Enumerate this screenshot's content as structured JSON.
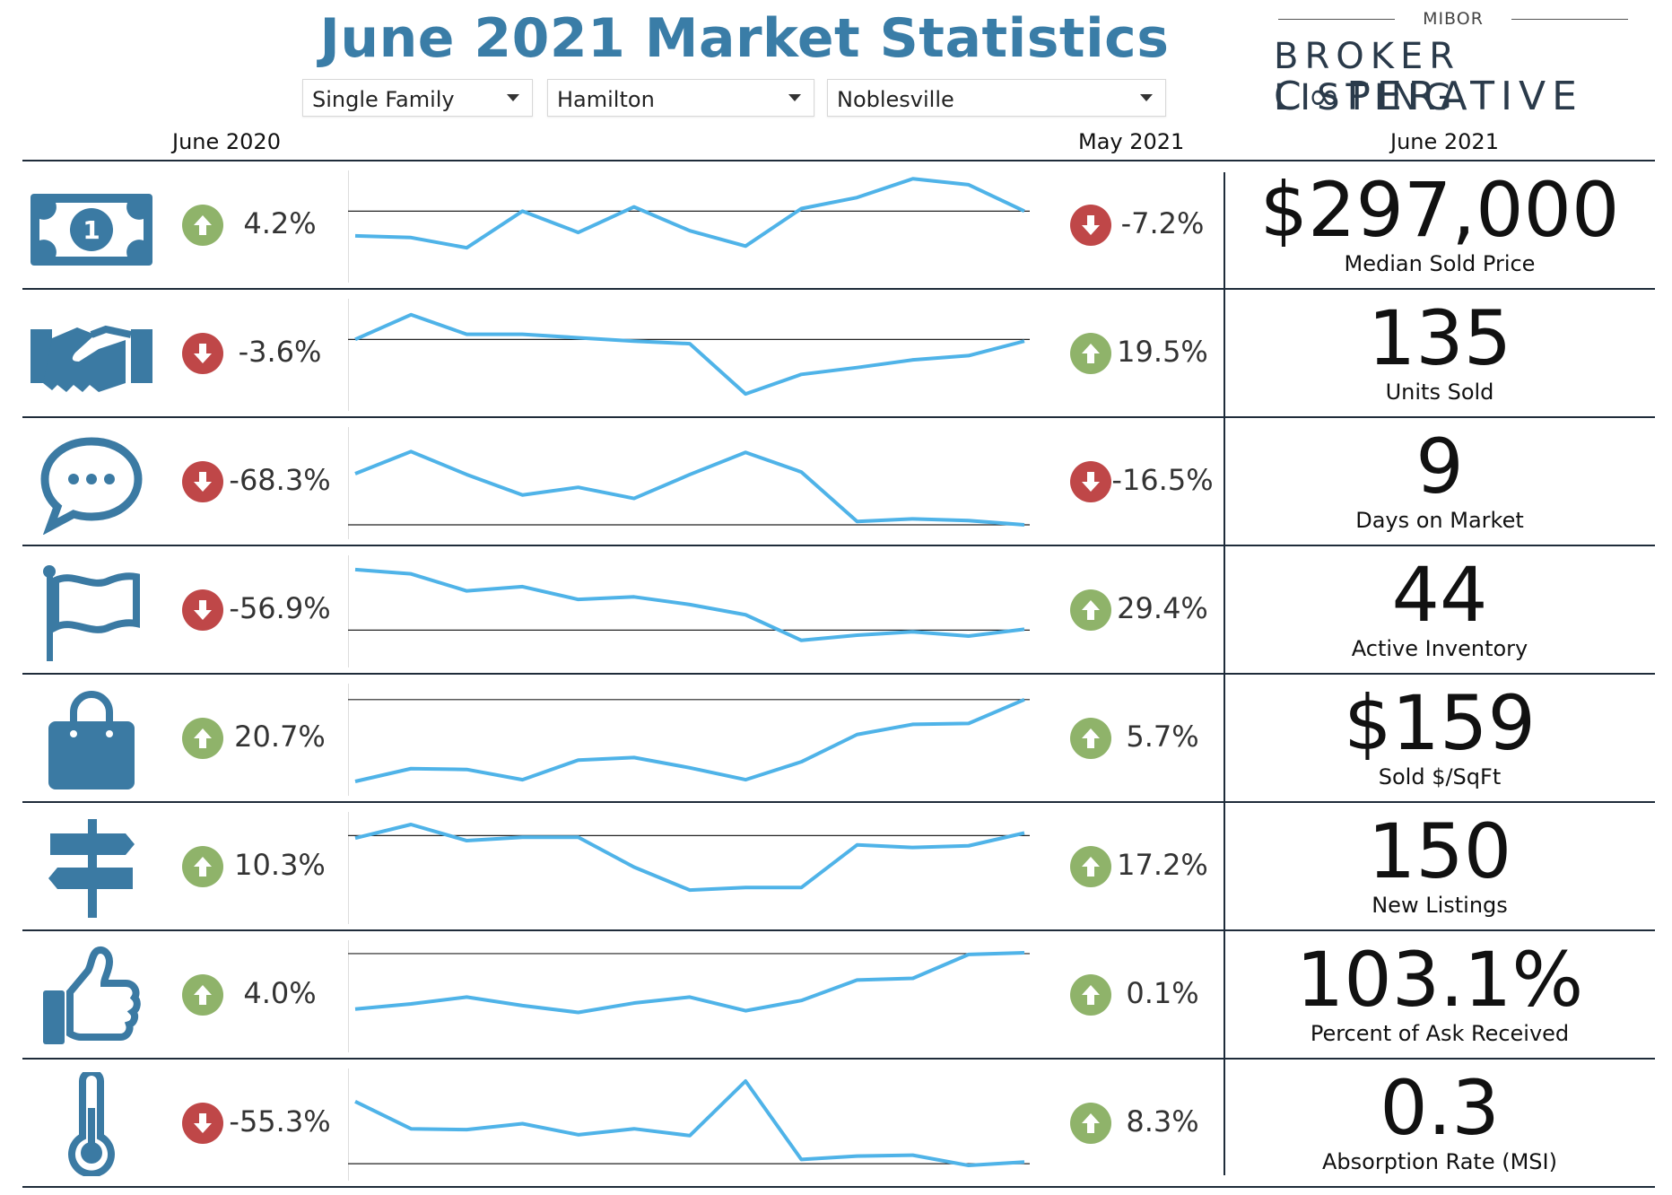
{
  "header": {
    "title": "June 2021 Market Statistics",
    "filters": [
      {
        "value": "Single Family"
      },
      {
        "value": "Hamilton"
      },
      {
        "value": "Noblesville"
      }
    ],
    "logo": {
      "top": "MIBOR",
      "line1": "BROKER LISTING",
      "line2": "C∞PERATIVE"
    }
  },
  "columns": {
    "left": "June 2020",
    "middle": "May 2021",
    "right": "June 2021"
  },
  "colors": {
    "brand_blue": "#3a7da7",
    "icon_blue": "#3b7aa3",
    "spark": "#4fb3e8",
    "up": "#8fb36a",
    "down": "#bf4748"
  },
  "chart_data": {
    "type": "line",
    "rows": [
      {
        "icon": "money-icon",
        "value": "$297,000",
        "label": "Median Sold Price",
        "yoy": {
          "dir": "up",
          "text": "4.2%"
        },
        "mom": {
          "dir": "down",
          "text": "-7.2%"
        },
        "series": [
          0.62,
          0.64,
          0.76,
          0.33,
          0.58,
          0.28,
          0.56,
          0.74,
          0.3,
          0.17,
          -0.05,
          0.02,
          0.33
        ],
        "baseline": 0.33
      },
      {
        "icon": "handshake-icon",
        "value": "135",
        "label": "Units Sold",
        "yoy": {
          "dir": "down",
          "text": "-3.6%"
        },
        "mom": {
          "dir": "up",
          "text": "19.5%"
        },
        "series": [
          0.33,
          0.04,
          0.27,
          0.27,
          0.31,
          0.35,
          0.38,
          0.97,
          0.74,
          0.66,
          0.57,
          0.52,
          0.35
        ],
        "baseline": 0.33
      },
      {
        "icon": "chat-icon",
        "value": "9",
        "label": "Days on Market",
        "yoy": {
          "dir": "down",
          "text": "-68.3%"
        },
        "mom": {
          "dir": "down",
          "text": "-16.5%"
        },
        "series": [
          0.4,
          0.14,
          0.41,
          0.65,
          0.56,
          0.69,
          0.41,
          0.15,
          0.38,
          0.96,
          0.93,
          0.95,
          1.0
        ],
        "baseline": 1.0
      },
      {
        "icon": "flag-icon",
        "value": "44",
        "label": "Active Inventory",
        "yoy": {
          "dir": "down",
          "text": "-56.9%"
        },
        "mom": {
          "dir": "up",
          "text": "29.4%"
        },
        "series": [
          0.02,
          0.07,
          0.27,
          0.22,
          0.37,
          0.34,
          0.43,
          0.55,
          0.85,
          0.79,
          0.75,
          0.8,
          0.72
        ],
        "baseline": 0.73
      },
      {
        "icon": "bag-icon",
        "value": "$159",
        "label": "Sold $/SqFt",
        "yoy": {
          "dir": "up",
          "text": "20.7%"
        },
        "mom": {
          "dir": "up",
          "text": "5.7%"
        },
        "series": [
          1.0,
          0.85,
          0.86,
          0.98,
          0.75,
          0.72,
          0.84,
          0.98,
          0.77,
          0.45,
          0.33,
          0.32,
          0.04
        ],
        "baseline": 0.04
      },
      {
        "icon": "signpost-icon",
        "value": "150",
        "label": "New Listings",
        "yoy": {
          "dir": "up",
          "text": "10.3%"
        },
        "mom": {
          "dir": "up",
          "text": "17.2%"
        },
        "series": [
          0.16,
          0.0,
          0.19,
          0.15,
          0.15,
          0.5,
          0.77,
          0.74,
          0.74,
          0.24,
          0.27,
          0.25,
          0.1
        ],
        "baseline": 0.13
      },
      {
        "icon": "thumbsup-icon",
        "value": "103.1%",
        "label": "Percent of Ask Received",
        "yoy": {
          "dir": "up",
          "text": "4.0%"
        },
        "mom": {
          "dir": "up",
          "text": "0.1%"
        },
        "series": [
          0.66,
          0.6,
          0.52,
          0.62,
          0.7,
          0.59,
          0.52,
          0.68,
          0.56,
          0.32,
          0.3,
          0.02,
          0.0
        ],
        "baseline": 0.01
      },
      {
        "icon": "thermometer-icon",
        "value": "0.3",
        "label": "Absorption Rate (MSI)",
        "yoy": {
          "dir": "down",
          "text": "-55.3%"
        },
        "mom": {
          "dir": "up",
          "text": "8.3%"
        },
        "series": [
          0.24,
          0.56,
          0.57,
          0.5,
          0.63,
          0.56,
          0.64,
          0.0,
          0.92,
          0.88,
          0.87,
          0.99,
          0.95
        ],
        "baseline": 0.97
      }
    ]
  }
}
